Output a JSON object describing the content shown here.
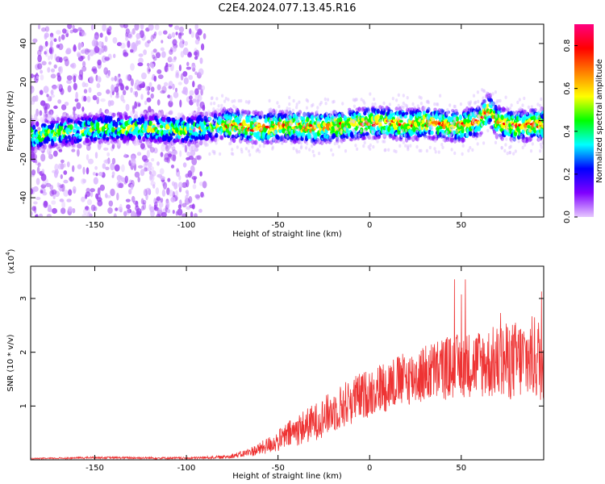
{
  "title": "C2E4.2024.077.13.45.R16",
  "chart_data": [
    {
      "type": "heatmap",
      "xlabel": "Height of straight line (km)",
      "ylabel": "Frequency (Hz)",
      "xlim": [
        -185,
        95
      ],
      "ylim": [
        -50,
        50
      ],
      "x_ticks": [
        -150,
        -100,
        -50,
        0,
        50
      ],
      "y_ticks": [
        -40,
        -20,
        0,
        20,
        40
      ],
      "grid": false,
      "colorbar": {
        "label": "Normalized spectral amplitude",
        "range": [
          0.0,
          0.9
        ],
        "ticks": [
          0.0,
          0.2,
          0.4,
          0.6,
          0.8
        ],
        "colors": [
          "#e6c8ff",
          "#8000ff",
          "#0000ff",
          "#00ffff",
          "#00ff00",
          "#ffff00",
          "#ff8000",
          "#ff0000",
          "#ff0080"
        ]
      },
      "ridge": {
        "x": [
          -185,
          -170,
          -160,
          -150,
          -140,
          -120,
          -100,
          -90,
          -80,
          -70,
          -60,
          -50,
          -40,
          -30,
          -20,
          -10,
          0,
          10,
          20,
          30,
          40,
          50,
          60,
          65,
          70,
          80,
          90,
          95
        ],
        "y": [
          -8,
          -6,
          -5,
          -4,
          -4,
          -4,
          -5,
          -4,
          -2,
          -3,
          -4,
          -3,
          -3,
          -4,
          -3,
          -2,
          -1,
          -1,
          -2,
          -1,
          -2,
          -3,
          0,
          6,
          -1,
          -3,
          -2,
          -2
        ]
      },
      "noisy_region_x": [
        -185,
        -90
      ]
    },
    {
      "type": "line",
      "xlabel": "Height of straight line (km)",
      "ylabel": "SNR (10 * v/v)",
      "y_multiplier_label": "(x10",
      "y_multiplier_exp": "4",
      "y_multiplier_close": ")",
      "xlim": [
        -185,
        95
      ],
      "ylim": [
        0,
        3.6
      ],
      "x_ticks": [
        -150,
        -100,
        -50,
        0,
        50
      ],
      "y_ticks": [
        1,
        2,
        3
      ],
      "grid": false,
      "color": "#ee3333",
      "envelope": {
        "x": [
          -185,
          -150,
          -100,
          -80,
          -70,
          -60,
          -50,
          -40,
          -30,
          -20,
          -10,
          0,
          10,
          20,
          30,
          40,
          50,
          60,
          70,
          80,
          90,
          95
        ],
        "y": [
          0.02,
          0.04,
          0.03,
          0.05,
          0.1,
          0.2,
          0.35,
          0.55,
          0.7,
          0.9,
          1.1,
          1.25,
          1.4,
          1.5,
          1.6,
          1.7,
          1.75,
          1.8,
          1.8,
          1.85,
          1.9,
          1.85
        ],
        "noise": [
          0.01,
          0.02,
          0.02,
          0.03,
          0.06,
          0.12,
          0.2,
          0.3,
          0.35,
          0.4,
          0.45,
          0.45,
          0.5,
          0.5,
          0.55,
          0.6,
          0.6,
          0.65,
          0.7,
          0.75,
          0.8,
          0.8
        ],
        "peak": 3.4
      }
    }
  ]
}
